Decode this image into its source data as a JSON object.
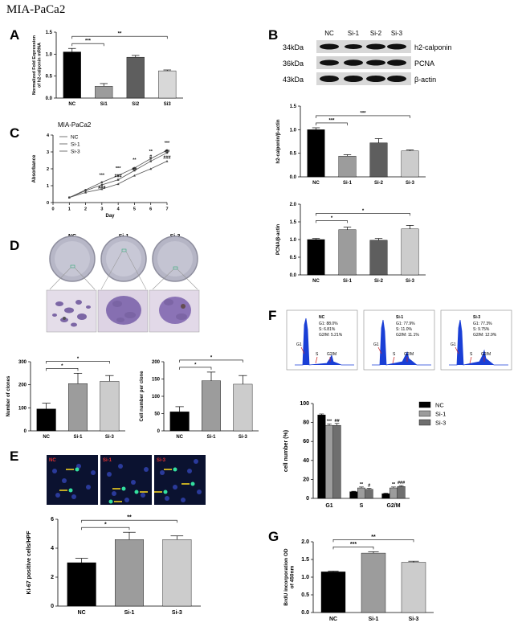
{
  "figure_title": "MIA-PaCa2",
  "panels": {
    "A": {
      "letter": "A"
    },
    "B": {
      "letter": "B",
      "blot_header": [
        "NC",
        "Si-1",
        "Si-2",
        "Si-3"
      ],
      "blot_rows": [
        {
          "kda": "34kDa",
          "name": "h2-calponin"
        },
        {
          "kda": "36kDa",
          "name": "PCNA"
        },
        {
          "kda": "43kDa",
          "name": "β-actin"
        }
      ]
    },
    "C": {
      "letter": "C"
    },
    "D": {
      "letter": "D",
      "dish_labels": [
        "NC",
        "Si-1",
        "Si-3"
      ]
    },
    "E": {
      "letter": "E",
      "image_labels": [
        "NC",
        "Si-1",
        "Si-3"
      ]
    },
    "F": {
      "letter": "F",
      "histograms": [
        {
          "title": "NC",
          "stats": [
            "G1: 88.0%",
            "S: 6.81%",
            "G2/M: 5.21%"
          ]
        },
        {
          "title": "Si-1",
          "stats": [
            "G1: 77.9%",
            "S: 11.0%",
            "G2/M: 11.1%"
          ]
        },
        {
          "title": "Si-3",
          "stats": [
            "G1: 77.3%",
            "S: 9.75%",
            "G2/M: 12.9%"
          ]
        }
      ],
      "phase_labels": [
        "G1",
        "S",
        "G2/M"
      ]
    },
    "G": {
      "letter": "G"
    }
  },
  "colors": {
    "NC": "#000000",
    "Si-1": "#9c9c9c",
    "Si-2": "#5e5e5e",
    "Si-3": "#cccccc",
    "Si3_light": "#d8d8d8",
    "F_Si-3": "#6e6e6e"
  },
  "chart_data": [
    {
      "id": "A",
      "type": "bar",
      "categories": [
        "NC",
        "Si1",
        "Si2",
        "Si3"
      ],
      "values": [
        1.05,
        0.27,
        0.93,
        0.62
      ],
      "errors": [
        0.08,
        0.06,
        0.04,
        0.02
      ],
      "ylabel": "Normalized Fold Expression of h2-calponin mRNA",
      "ylim": [
        0,
        1.5
      ],
      "yticks": [
        "0.0",
        "0.5",
        "1.0",
        "1.5"
      ],
      "sig": [
        {
          "from": 0,
          "to": 1,
          "label": "***"
        },
        {
          "from": 0,
          "to": 3,
          "label": "**"
        }
      ]
    },
    {
      "id": "B1",
      "type": "bar",
      "categories": [
        "NC",
        "Si-1",
        "Si-2",
        "Si-3"
      ],
      "values": [
        1.0,
        0.44,
        0.72,
        0.55
      ],
      "errors": [
        0.04,
        0.03,
        0.09,
        0.02
      ],
      "ylabel": "h2-calponin/β-actin",
      "ylim": [
        0,
        1.5
      ],
      "yticks": [
        "0.0",
        "0.5",
        "1.0",
        "1.5"
      ],
      "sig": [
        {
          "from": 0,
          "to": 1,
          "label": "***"
        },
        {
          "from": 0,
          "to": 3,
          "label": "***"
        }
      ]
    },
    {
      "id": "B2",
      "type": "bar",
      "categories": [
        "NC",
        "Si-1",
        "Si-2",
        "Si-3"
      ],
      "values": [
        1.0,
        1.28,
        0.98,
        1.3
      ],
      "errors": [
        0.03,
        0.07,
        0.05,
        0.1
      ],
      "ylabel": "PCNA/β-actin",
      "ylim": [
        0,
        2.0
      ],
      "yticks": [
        "0.0",
        "0.5",
        "1.0",
        "1.5",
        "2.0"
      ],
      "sig": [
        {
          "from": 0,
          "to": 1,
          "label": "*"
        },
        {
          "from": 0,
          "to": 3,
          "label": "*"
        }
      ]
    },
    {
      "id": "C",
      "type": "line",
      "title": "MIA-PaCa2",
      "xlabel": "Day",
      "ylabel": "Absorbance",
      "x": [
        1,
        2,
        3,
        4,
        5,
        6,
        7
      ],
      "xlim": [
        0,
        7
      ],
      "ylim": [
        0,
        4
      ],
      "xticks": [
        "0",
        "1",
        "2",
        "3",
        "4",
        "5",
        "6",
        "7"
      ],
      "yticks": [
        "0",
        "1",
        "2",
        "3",
        "4"
      ],
      "series": [
        {
          "name": "NC",
          "values": [
            0.3,
            0.75,
            1.2,
            1.6,
            2.05,
            2.6,
            3.1
          ]
        },
        {
          "name": "Si-1",
          "values": [
            0.3,
            0.7,
            1.05,
            1.35,
            1.9,
            2.45,
            2.95
          ]
        },
        {
          "name": "Si-3",
          "values": [
            0.3,
            0.6,
            0.8,
            1.1,
            1.6,
            2.0,
            2.45
          ]
        }
      ],
      "annotations": [
        {
          "x": 3,
          "y": 1.55,
          "label": "***"
        },
        {
          "x": 3,
          "y": 0.8,
          "label": "###"
        },
        {
          "x": 4,
          "y": 1.95,
          "label": "***"
        },
        {
          "x": 4,
          "y": 1.5,
          "label": "###"
        },
        {
          "x": 5,
          "y": 2.45,
          "label": "**"
        },
        {
          "x": 5,
          "y": 1.9,
          "label": "##"
        },
        {
          "x": 6,
          "y": 2.95,
          "label": "**"
        },
        {
          "x": 6,
          "y": 2.65,
          "label": "#"
        },
        {
          "x": 7,
          "y": 3.45,
          "label": "***"
        },
        {
          "x": 7,
          "y": 2.95,
          "label": "##"
        },
        {
          "x": 7,
          "y": 2.6,
          "label": "###"
        }
      ]
    },
    {
      "id": "D1",
      "type": "bar",
      "categories": [
        "NC",
        "Si-1",
        "Si-3"
      ],
      "values": [
        95,
        205,
        215
      ],
      "errors": [
        25,
        45,
        25
      ],
      "ylabel": "Number of clones",
      "ylim": [
        0,
        300
      ],
      "yticks": [
        "0",
        "100",
        "200",
        "300"
      ],
      "sig": [
        {
          "from": 0,
          "to": 1,
          "label": "*"
        },
        {
          "from": 0,
          "to": 2,
          "label": "*"
        }
      ]
    },
    {
      "id": "D2",
      "type": "bar",
      "categories": [
        "NC",
        "Si-1",
        "Si-3"
      ],
      "values": [
        55,
        145,
        135
      ],
      "errors": [
        15,
        25,
        25
      ],
      "ylabel": "Cell number per clone",
      "ylim": [
        0,
        200
      ],
      "yticks": [
        "0",
        "50",
        "100",
        "150",
        "200"
      ],
      "sig": [
        {
          "from": 0,
          "to": 1,
          "label": "*"
        },
        {
          "from": 0,
          "to": 2,
          "label": "*"
        }
      ]
    },
    {
      "id": "E",
      "type": "bar",
      "categories": [
        "NC",
        "Si-1",
        "Si-3"
      ],
      "values": [
        3.0,
        4.6,
        4.6
      ],
      "errors": [
        0.3,
        0.5,
        0.25
      ],
      "ylabel": "Ki-67 positive cells/HPF",
      "ylim": [
        0,
        6
      ],
      "yticks": [
        "0",
        "2",
        "4",
        "6"
      ],
      "sig": [
        {
          "from": 0,
          "to": 1,
          "label": "*"
        },
        {
          "from": 0,
          "to": 2,
          "label": "**"
        }
      ]
    },
    {
      "id": "F",
      "type": "bar",
      "categories": [
        "G1",
        "S",
        "G2/M"
      ],
      "series": [
        {
          "name": "NC",
          "values": [
            88,
            7,
            5
          ]
        },
        {
          "name": "Si-1",
          "values": [
            77,
            11,
            11
          ]
        },
        {
          "name": "Si-3",
          "values": [
            77,
            9.5,
            12.5
          ]
        }
      ],
      "errors": [
        [
          1,
          0.5,
          0.5
        ],
        [
          1.5,
          1,
          1
        ],
        [
          2,
          1,
          1
        ]
      ],
      "ylabel": "cell number (%)",
      "ylim": [
        0,
        100
      ],
      "yticks": [
        "0",
        "20",
        "40",
        "60",
        "80",
        "100"
      ],
      "marks": [
        [
          null,
          null,
          null
        ],
        [
          "***",
          "**",
          "**"
        ],
        [
          "##",
          "#",
          "###"
        ]
      ],
      "legend": [
        "NC",
        "Si-1",
        "Si-3"
      ]
    },
    {
      "id": "G",
      "type": "bar",
      "categories": [
        "NC",
        "Si-1",
        "Si-3"
      ],
      "values": [
        1.15,
        1.68,
        1.42
      ],
      "errors": [
        0.02,
        0.04,
        0.03
      ],
      "ylabel": "BrdU incorporation OD of 450nm",
      "ylim": [
        0,
        2.0
      ],
      "yticks": [
        "0.0",
        "0.5",
        "1.0",
        "1.5",
        "2.0"
      ],
      "sig": [
        {
          "from": 0,
          "to": 1,
          "label": "***"
        },
        {
          "from": 0,
          "to": 2,
          "label": "**"
        }
      ]
    }
  ]
}
